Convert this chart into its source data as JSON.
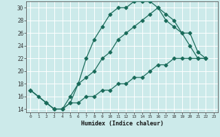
{
  "xlabel": "Humidex (Indice chaleur)",
  "bg_color": "#cceaea",
  "grid_color": "#ffffff",
  "line_color": "#1a6b5a",
  "xlim": [
    -0.5,
    23.5
  ],
  "ylim": [
    13.5,
    31
  ],
  "x_ticks": [
    0,
    1,
    2,
    3,
    4,
    5,
    6,
    7,
    8,
    9,
    10,
    11,
    12,
    13,
    14,
    15,
    16,
    17,
    18,
    19,
    20,
    21,
    22,
    23
  ],
  "y_ticks": [
    14,
    16,
    18,
    20,
    22,
    24,
    26,
    28,
    30
  ],
  "line1_x": [
    0,
    1,
    2,
    3,
    4,
    5,
    6,
    7,
    8,
    9,
    10,
    11,
    12,
    13,
    14,
    15,
    16,
    17,
    18,
    19,
    20,
    21,
    22
  ],
  "line1_y": [
    17,
    16,
    15,
    14,
    14,
    15,
    18,
    22,
    25,
    27,
    29,
    30,
    30,
    31,
    31,
    31,
    30,
    29,
    28,
    26,
    24,
    22,
    22
  ],
  "line2_x": [
    0,
    2,
    3,
    4,
    5,
    6,
    7,
    8,
    9,
    10,
    11,
    12,
    13,
    14,
    15,
    16,
    17,
    18,
    19,
    20,
    21,
    22
  ],
  "line2_y": [
    17,
    15,
    14,
    14,
    16,
    18,
    19,
    20,
    22,
    23,
    25,
    26,
    27,
    28,
    29,
    30,
    28,
    27,
    26,
    26,
    23,
    22
  ],
  "line3_x": [
    0,
    2,
    3,
    4,
    5,
    6,
    7,
    8,
    9,
    10,
    11,
    12,
    13,
    14,
    15,
    16,
    17,
    18,
    19,
    20,
    21,
    22
  ],
  "line3_y": [
    17,
    15,
    14,
    14,
    15,
    15,
    16,
    16,
    17,
    17,
    18,
    18,
    19,
    19,
    20,
    21,
    21,
    22,
    22,
    22,
    22,
    22
  ]
}
